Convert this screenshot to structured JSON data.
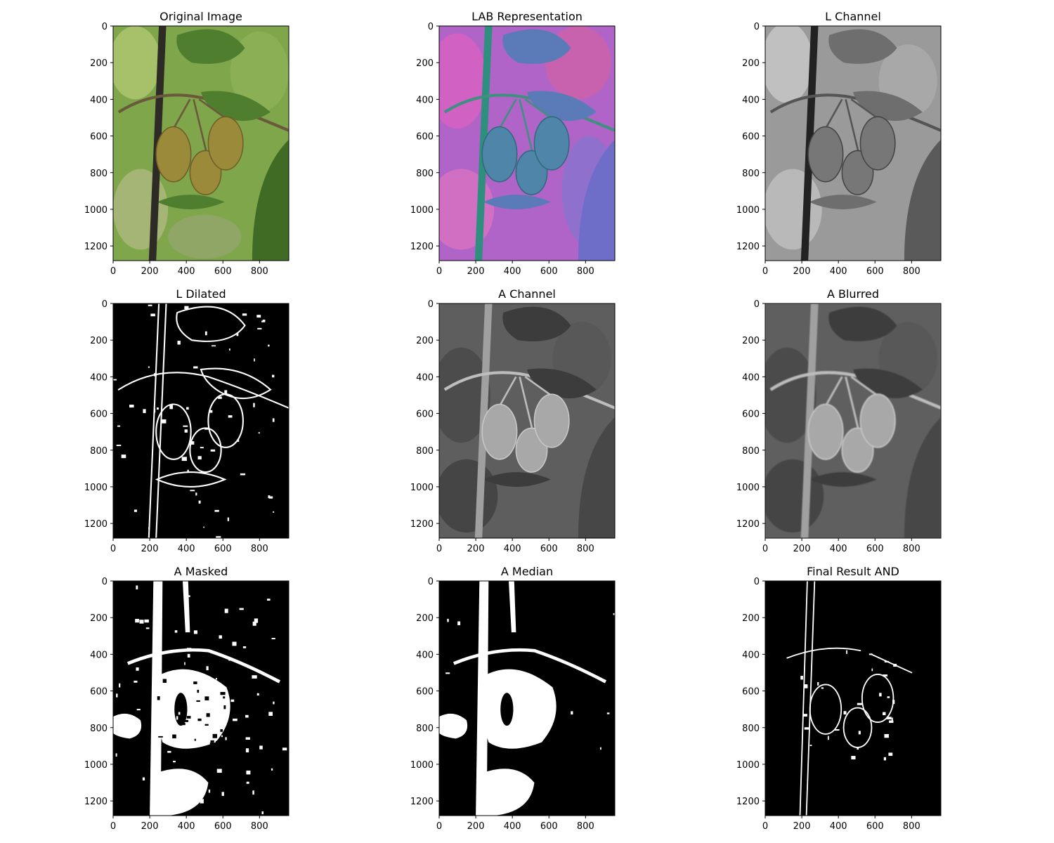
{
  "figure": {
    "panels": [
      {
        "id": "original",
        "title": "Original Image",
        "style": "color"
      },
      {
        "id": "lab",
        "title": "LAB Representation",
        "style": "lab"
      },
      {
        "id": "l-channel",
        "title": "L Channel",
        "style": "gray"
      },
      {
        "id": "l-dilated",
        "title": "L Dilated",
        "style": "edges"
      },
      {
        "id": "a-channel",
        "title": "A Channel",
        "style": "gray-a"
      },
      {
        "id": "a-blurred",
        "title": "A Blurred",
        "style": "gray-a-blur"
      },
      {
        "id": "a-masked",
        "title": "A Masked",
        "style": "mask"
      },
      {
        "id": "a-median",
        "title": "A Median",
        "style": "mask-smooth"
      },
      {
        "id": "final-and",
        "title": "Final Result AND",
        "style": "final"
      }
    ]
  },
  "chart_data": {
    "type": "image-grid",
    "rows": 3,
    "cols": 3,
    "image_extent": {
      "x": [
        0,
        960
      ],
      "y": [
        1280,
        0
      ]
    },
    "xticks": [
      0,
      200,
      400,
      600,
      800
    ],
    "yticks": [
      0,
      200,
      400,
      600,
      800,
      1000,
      1200
    ],
    "titles": [
      "Original Image",
      "LAB Representation",
      "L Channel",
      "L Dilated",
      "A Channel",
      "A Blurred",
      "A Masked",
      "A Median",
      "Final Result AND"
    ]
  }
}
